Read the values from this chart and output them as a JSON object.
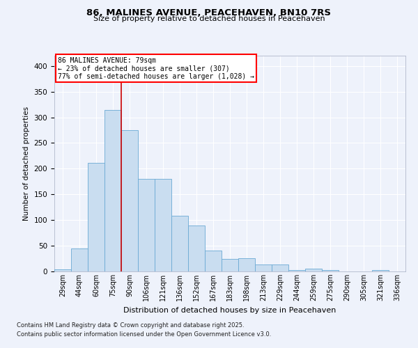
{
  "title": "86, MALINES AVENUE, PEACEHAVEN, BN10 7RS",
  "subtitle": "Size of property relative to detached houses in Peacehaven",
  "xlabel": "Distribution of detached houses by size in Peacehaven",
  "ylabel": "Number of detached properties",
  "categories": [
    "29sqm",
    "44sqm",
    "60sqm",
    "75sqm",
    "90sqm",
    "106sqm",
    "121sqm",
    "136sqm",
    "152sqm",
    "167sqm",
    "183sqm",
    "198sqm",
    "213sqm",
    "229sqm",
    "244sqm",
    "259sqm",
    "275sqm",
    "290sqm",
    "305sqm",
    "321sqm",
    "336sqm"
  ],
  "values": [
    4,
    45,
    212,
    315,
    275,
    180,
    180,
    108,
    90,
    40,
    25,
    26,
    14,
    13,
    3,
    6,
    3,
    0,
    0,
    3,
    0
  ],
  "bar_color": "#c9ddf0",
  "bar_edge_color": "#6aaad4",
  "ylim": [
    0,
    420
  ],
  "yticks": [
    0,
    50,
    100,
    150,
    200,
    250,
    300,
    350,
    400
  ],
  "annotation_line1": "86 MALINES AVENUE: 79sqm",
  "annotation_line2": "← 23% of detached houses are smaller (307)",
  "annotation_line3": "77% of semi-detached houses are larger (1,028) →",
  "vline_color": "#cc0000",
  "vline_x": 3.5,
  "bg_color": "#eef2fb",
  "grid_color": "#ffffff",
  "footnote1": "Contains HM Land Registry data © Crown copyright and database right 2025.",
  "footnote2": "Contains public sector information licensed under the Open Government Licence v3.0."
}
